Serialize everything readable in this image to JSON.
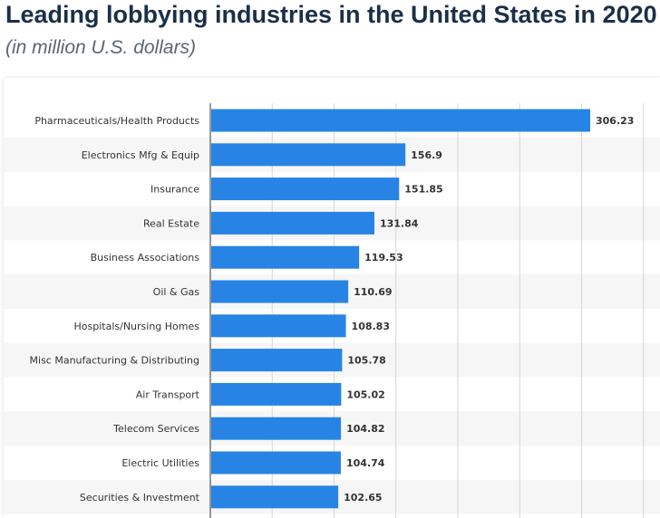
{
  "header": {
    "title": "Leading lobbying industries in the United States in 2020",
    "subtitle": "(in million U.S. dollars)"
  },
  "colors": {
    "bar": "#2784e4",
    "band": "#f6f6f6",
    "grid": "#d6d6d6",
    "axis": "#333333"
  },
  "chart_data": {
    "type": "bar",
    "orientation": "horizontal",
    "title": "Leading lobbying industries in the United States in 2020",
    "subtitle": "(in million U.S. dollars)",
    "xlabel": "",
    "ylabel": "",
    "xlim": [
      0,
      350
    ],
    "grid": true,
    "categories": [
      "Pharmaceuticals/Health Products",
      "Electronics Mfg & Equip",
      "Insurance",
      "Real Estate",
      "Business Associations",
      "Oil & Gas",
      "Hospitals/Nursing Homes",
      "Misc Manufacturing & Distributing",
      "Air Transport",
      "Telecom Services",
      "Electric Utilities",
      "Securities & Investment"
    ],
    "values": [
      306.23,
      156.9,
      151.85,
      131.84,
      119.53,
      110.69,
      108.83,
      105.78,
      105.02,
      104.82,
      104.74,
      102.65
    ]
  }
}
